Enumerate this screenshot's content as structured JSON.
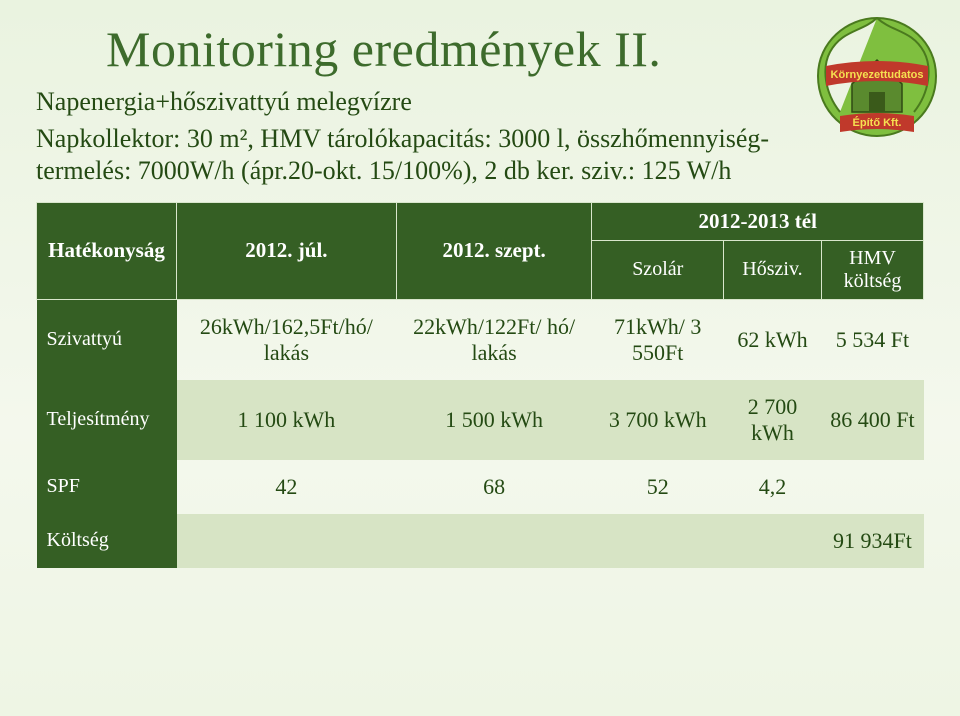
{
  "title": "Monitoring eredmények II.",
  "subtitle": "Napenergia+hőszivattyú melegvízre",
  "description_lines": [
    "Napkollektor: 30 m², HMV tárolókapacitás: 3000 l, összhőmennyiség-termelés: 7000W/h (ápr.20-okt. 15/100%), 2 db ker. sziv.: 125 W/h"
  ],
  "logo": {
    "top_line": "Környezettudatos",
    "bottom_line": "Építő Kft.",
    "leaf_color": "#7fbf3f",
    "house_color": "#5a8a2e",
    "banner_color": "#c0392b",
    "text_color": "#f5e050"
  },
  "table": {
    "header": {
      "row_label": "Hatékonyság",
      "col1": "2012. júl.",
      "col2": "2012. szept.",
      "col3_span": "2012-2013 tél",
      "sub": {
        "c3a": "Szolár",
        "c3b": "Hősziv.",
        "c3c": "HMV költség"
      }
    },
    "rows": [
      {
        "label": "Szivattyú",
        "c1": "26kWh/162,5Ft/hó/ lakás",
        "c2": "22kWh/122Ft/ hó/ lakás",
        "c3a": "71kWh/ 3 550Ft",
        "c3b": "62 kWh",
        "c3c": "5 534 Ft",
        "alt": false
      },
      {
        "label": "Teljesítmény",
        "c1": "1 100 kWh",
        "c2": "1 500 kWh",
        "c3a": "3 700 kWh",
        "c3b": "2 700 kWh",
        "c3c": "86 400 Ft",
        "alt": true
      },
      {
        "label": "SPF",
        "c1": "42",
        "c2": "68",
        "c3a": "52",
        "c3b": "4,2",
        "c3c": "",
        "alt": false
      },
      {
        "label": "Költség",
        "c1": "",
        "c2": "",
        "c3a": "",
        "c3b": "",
        "c3c": "91 934Ft",
        "alt": true
      }
    ]
  },
  "colors": {
    "header_bg": "#355f24",
    "header_fg": "#ffffff",
    "alt_row_bg": "#d7e4c5",
    "text": "#244a13",
    "title": "#3d6b2c"
  }
}
